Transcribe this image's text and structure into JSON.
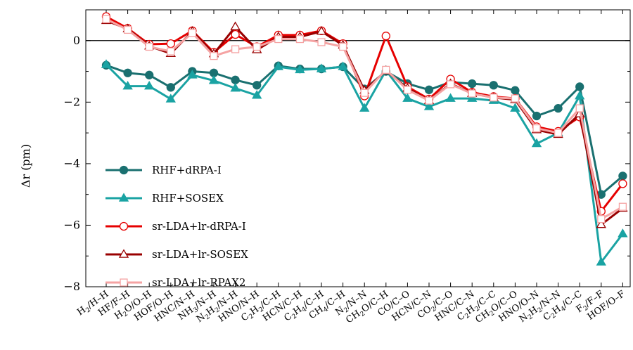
{
  "chart_data": {
    "type": "line",
    "title": "",
    "xlabel": "",
    "ylabel": "Δr (pm)",
    "ylim": [
      -8,
      1
    ],
    "yticks": [
      0,
      -2,
      -4,
      -6,
      -8
    ],
    "grid": false,
    "legend_position": "left",
    "zero_line": true,
    "categories": [
      "H2/H–H",
      "HF/F–H",
      "H2O/O–H",
      "HOF/O–H",
      "HNC/N–H",
      "NH3/N–H",
      "N2H2/N–H",
      "HNO/N–H",
      "C2H2/C–H",
      "HCN/C–H",
      "C2H4/C–H",
      "CH4/C–H",
      "N2/N–N",
      "CH2O/C–H",
      "CO/C–O",
      "HCN/C–N",
      "CO2/C–O",
      "HNC/C–N",
      "C2H2/C–C",
      "CH2O/C–O",
      "HNO/O–N",
      "N2H2/N–N",
      "C2H4/C–C",
      "F2/F–F",
      "HOF/O–F"
    ],
    "series": [
      {
        "name": "RHF+dRPA-I",
        "color": "#1a7070",
        "marker": "circle-filled",
        "values": [
          -0.8,
          -1.05,
          -1.12,
          -1.52,
          -1.0,
          -1.05,
          -1.28,
          -1.45,
          -0.82,
          -0.92,
          -0.92,
          -0.85,
          -1.57,
          -1.0,
          -1.4,
          -1.6,
          -1.35,
          -1.4,
          -1.45,
          -1.62,
          -2.45,
          -2.2,
          -1.5,
          -5.0,
          -4.4
        ]
      },
      {
        "name": "RHF+SOSEX",
        "color": "#1aa3a3",
        "marker": "triangle-filled",
        "values": [
          -0.78,
          -1.48,
          -1.48,
          -1.9,
          -1.12,
          -1.3,
          -1.55,
          -1.78,
          -0.85,
          -0.95,
          -0.92,
          -0.85,
          -2.2,
          -0.97,
          -1.88,
          -2.15,
          -1.88,
          -1.88,
          -1.95,
          -2.2,
          -3.35,
          -3.0,
          -1.8,
          -7.2,
          -6.28
        ]
      },
      {
        "name": "sr-LDA+lr-dRPA-I",
        "color": "#e60000",
        "marker": "circle-open",
        "values": [
          0.78,
          0.4,
          -0.12,
          -0.1,
          0.32,
          -0.38,
          0.2,
          -0.2,
          0.18,
          0.18,
          0.32,
          -0.1,
          -1.8,
          0.15,
          -1.5,
          -1.9,
          -1.25,
          -1.68,
          -1.82,
          -1.88,
          -2.8,
          -2.95,
          -2.48,
          -5.55,
          -4.65
        ]
      },
      {
        "name": "sr-LDA+lr-SOSEX",
        "color": "#990000",
        "marker": "triangle-open",
        "values": [
          0.65,
          0.38,
          -0.18,
          -0.42,
          0.3,
          -0.43,
          0.45,
          -0.3,
          0.12,
          0.12,
          0.3,
          -0.15,
          -1.62,
          -0.98,
          -1.55,
          -1.95,
          -1.4,
          -1.72,
          -1.85,
          -1.92,
          -2.9,
          -3.05,
          -2.38,
          -5.98,
          -5.45
        ]
      },
      {
        "name": "sr-LDA+lr-RPAX2",
        "color": "#f5a3a3",
        "marker": "square-open",
        "values": [
          0.7,
          0.35,
          -0.2,
          -0.35,
          0.25,
          -0.5,
          -0.28,
          -0.2,
          0.05,
          0.05,
          -0.05,
          -0.2,
          -1.7,
          -0.95,
          -1.6,
          -1.95,
          -1.42,
          -1.72,
          -1.85,
          -1.88,
          -2.85,
          -3.0,
          -2.2,
          -5.8,
          -5.4
        ]
      }
    ]
  }
}
